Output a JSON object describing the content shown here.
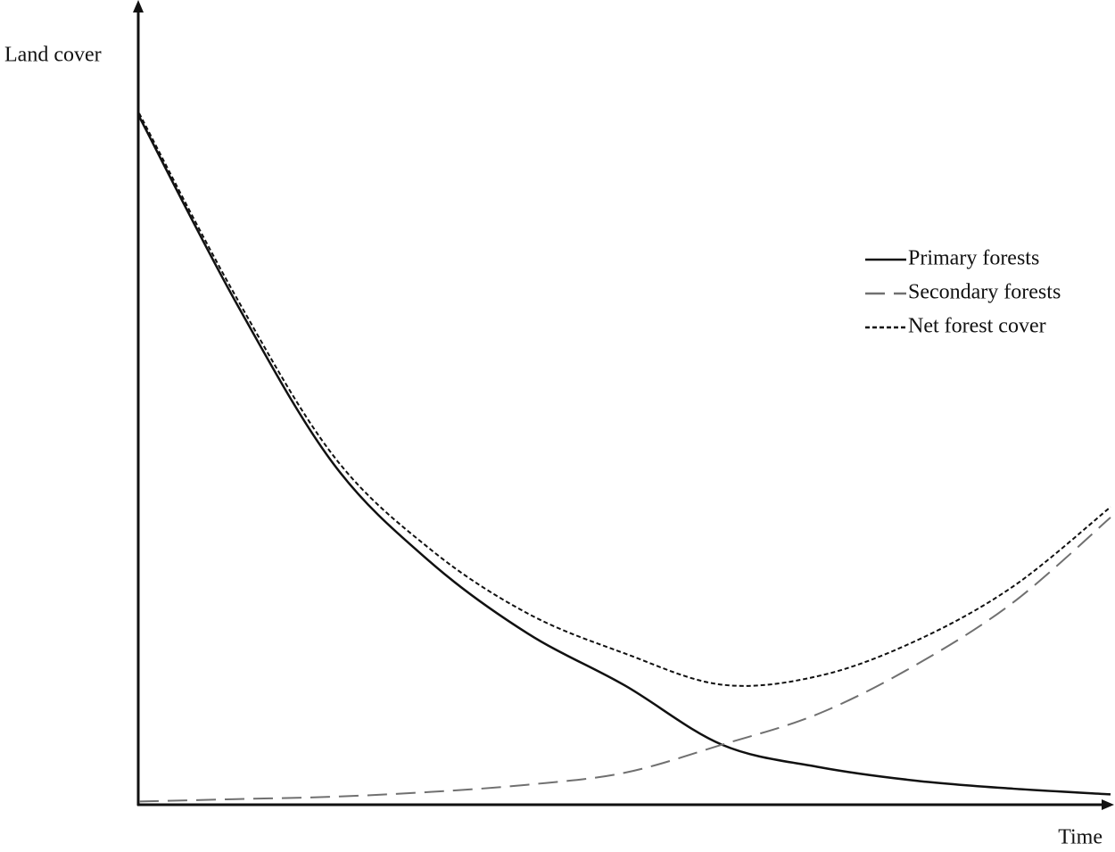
{
  "chart_data": {
    "type": "line",
    "x_label": "Time",
    "y_label": "Land cover",
    "x": [
      0,
      10,
      20,
      30,
      40,
      50,
      60,
      70,
      80,
      90,
      100
    ],
    "xlim": [
      0,
      100
    ],
    "ylim": [
      0,
      100
    ],
    "legend": "upper right",
    "series": [
      {
        "name": "Primary forests",
        "color": "#111111",
        "style": "solid",
        "values": [
          86,
          62.7,
          42.6,
          30.3,
          21.4,
          14.9,
          7.5,
          4.7,
          3.0,
          2.0,
          1.3
        ]
      },
      {
        "name": "Secondary forests",
        "color": "#707070",
        "style": "dashed",
        "values": [
          0.4,
          0.7,
          1.0,
          1.6,
          2.5,
          4.0,
          7.5,
          11.4,
          17.5,
          25.3,
          35.9
        ]
      },
      {
        "name": "Net forest cover",
        "color": "#111111",
        "style": "dotted",
        "values": [
          86.4,
          63.4,
          43.6,
          31.9,
          23.9,
          18.9,
          15.0,
          16.1,
          20.5,
          27.3,
          37.2
        ]
      }
    ]
  }
}
